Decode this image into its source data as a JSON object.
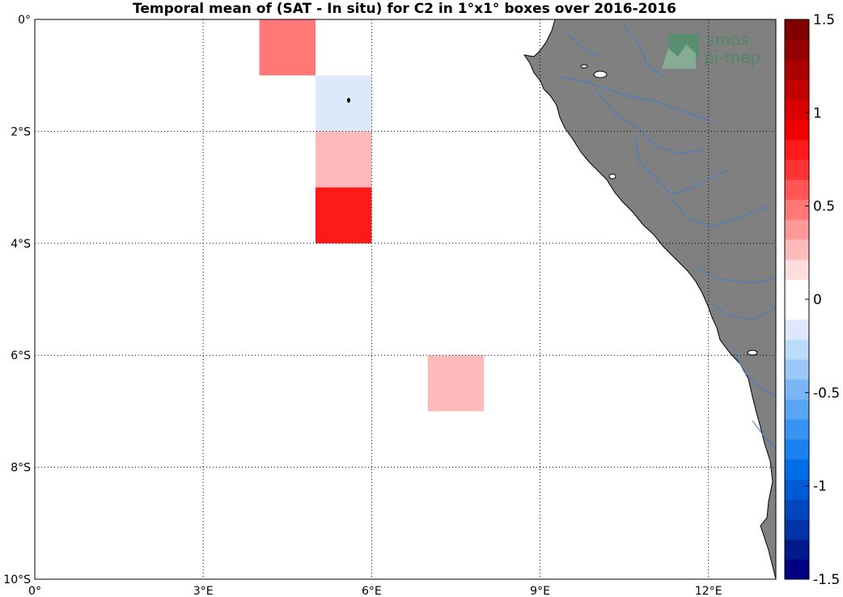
{
  "title": "Temporal mean of (SAT - In situ) for C2 in 1°x1° boxes over 2016-2016",
  "logo": {
    "line1": "smos",
    "line2": "pi-mep"
  },
  "map": {
    "lon_range": [
      0,
      13.2
    ],
    "lat_range": [
      -10,
      0
    ],
    "lon_ticks": [
      {
        "value": 0,
        "label": "0°"
      },
      {
        "value": 3,
        "label": "3°E"
      },
      {
        "value": 6,
        "label": "6°E"
      },
      {
        "value": 9,
        "label": "9°E"
      },
      {
        "value": 12,
        "label": "12°E"
      }
    ],
    "lat_ticks": [
      {
        "value": 0,
        "label": "0°"
      },
      {
        "value": -2,
        "label": "2°S"
      },
      {
        "value": -4,
        "label": "4°S"
      },
      {
        "value": -6,
        "label": "6°S"
      },
      {
        "value": -8,
        "label": "8°S"
      },
      {
        "value": -10,
        "label": "10°S"
      }
    ],
    "grid": true,
    "land_color": "#808080",
    "river_color": "#3a7fd0"
  },
  "chart_data": {
    "type": "heatmap",
    "cells": [
      {
        "lon": [
          4,
          5
        ],
        "lat": [
          -1,
          0
        ],
        "value": 0.45
      },
      {
        "lon": [
          5,
          6
        ],
        "lat": [
          -2,
          -1
        ],
        "value": -0.2
      },
      {
        "lon": [
          5,
          6
        ],
        "lat": [
          -3,
          -2
        ],
        "value": 0.3
      },
      {
        "lon": [
          5,
          6
        ],
        "lat": [
          -4,
          -3
        ],
        "value": 0.85
      },
      {
        "lon": [
          7,
          8
        ],
        "lat": [
          -7,
          -6
        ],
        "value": 0.3
      }
    ],
    "colorbar": {
      "range": [
        -1.5,
        1.5
      ],
      "ticks": [
        {
          "value": 1.5,
          "label": "1.5"
        },
        {
          "value": 1,
          "label": "1"
        },
        {
          "value": 0.5,
          "label": "0.5"
        },
        {
          "value": 0,
          "label": "0"
        },
        {
          "value": -0.5,
          "label": "-0.5"
        },
        {
          "value": -1,
          "label": "-1"
        },
        {
          "value": -1.5,
          "label": "-1.5"
        }
      ],
      "colors": [
        "#000080",
        "#001a8c",
        "#0033a6",
        "#0047bf",
        "#005ad6",
        "#006ee8",
        "#1a82f0",
        "#3a93f2",
        "#5aa4f4",
        "#7ab5f6",
        "#9cc8f8",
        "#bcdaf9",
        "#dde9fa",
        "#ffffff",
        "#ffffff",
        "#ffdddd",
        "#ffbbbb",
        "#ff9999",
        "#ff7777",
        "#ff5555",
        "#ff3333",
        "#ff1a1a",
        "#f20000",
        "#d80000",
        "#c20000",
        "#ac0000",
        "#960000",
        "#800000"
      ]
    }
  }
}
